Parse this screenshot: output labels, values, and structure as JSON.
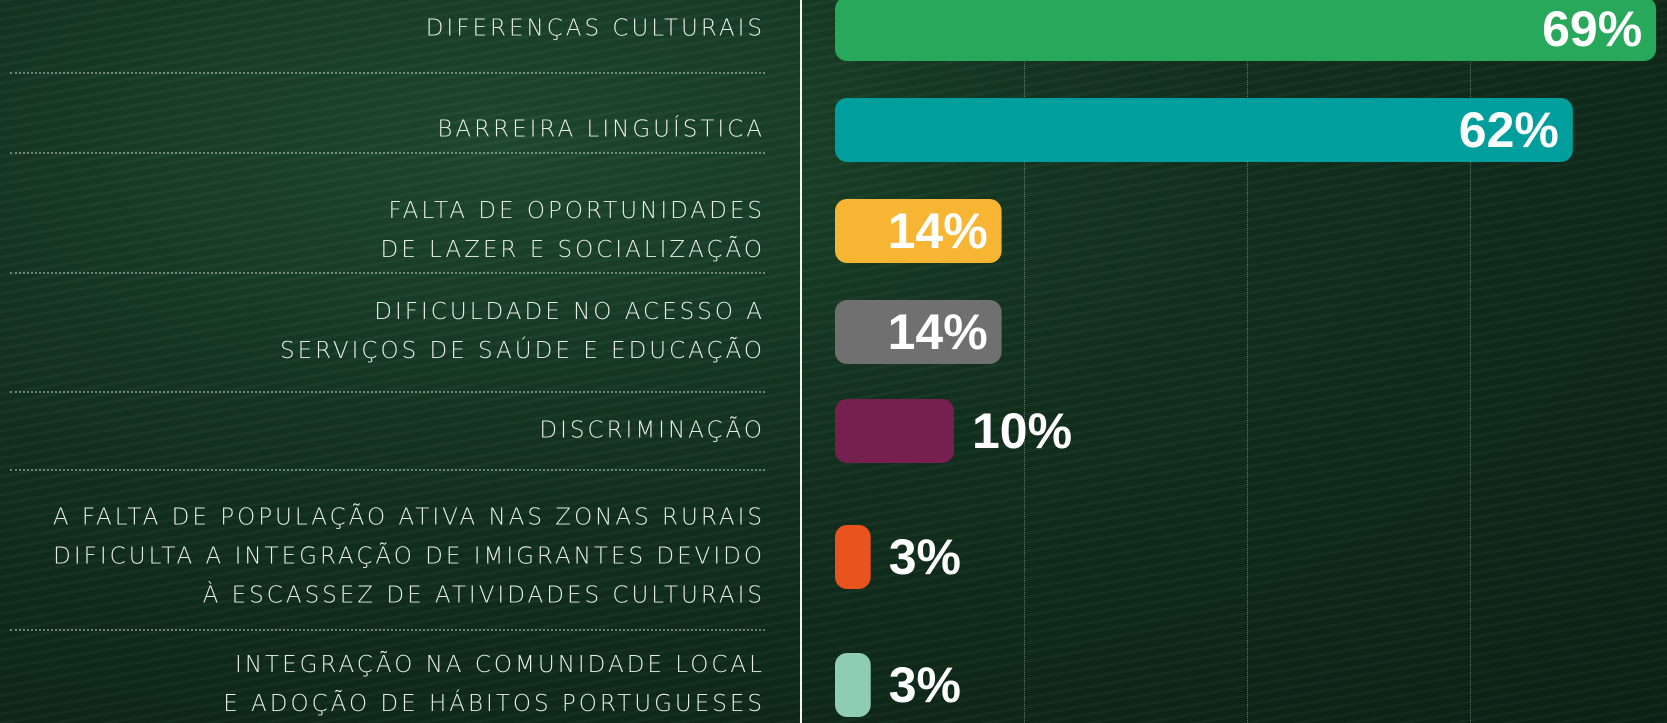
{
  "chart_data": {
    "type": "bar",
    "orientation": "horizontal",
    "categories": [
      "DIFERENÇAS CULTURAIS",
      "BARREIRA LINGUÍSTICA",
      "FALTA DE OPORTUNIDADES\nDE LAZER E SOCIALIZAÇÃO",
      "DIFICULDADE NO ACESSO A\nSERVIÇOS DE SAÚDE E EDUCAÇÃO",
      "DISCRIMINAÇÃO",
      "A FALTA DE POPULAÇÃO ATIVA NAS ZONAS RURAIS\nDIFICULTA A INTEGRAÇÃO DE IMIGRANTES DEVIDO\nÀ ESCASSEZ DE ATIVIDADES CULTURAIS",
      "INTEGRAÇÃO NA COMUNIDADE LOCAL\nE ADOÇÃO DE HÁBITOS PORTUGUESES"
    ],
    "values": [
      69,
      62,
      14,
      14,
      10,
      3,
      3
    ],
    "value_labels": [
      "69%",
      "62%",
      "14%",
      "14%",
      "10%",
      "3%",
      "3%"
    ],
    "colors": [
      "#27a85a",
      "#009e9c",
      "#f7b534",
      "#707070",
      "#76204f",
      "#e8531e",
      "#8ecdb3"
    ]
  }
}
